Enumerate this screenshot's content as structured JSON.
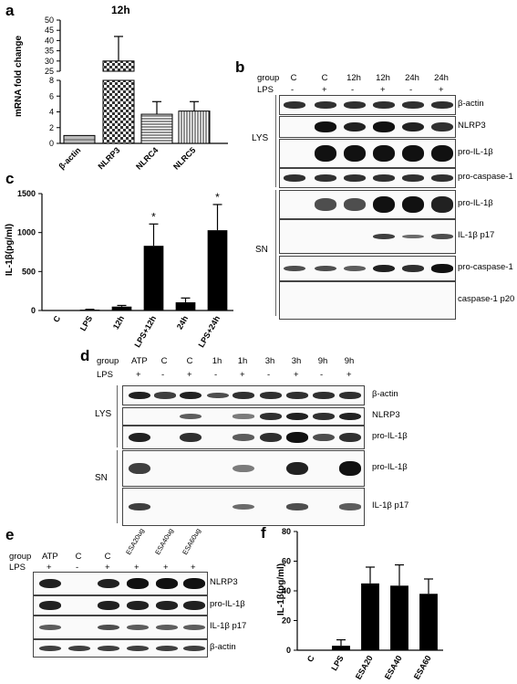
{
  "panels": {
    "a": {
      "letter": "a",
      "chart_data": {
        "type": "bar",
        "title": "12h",
        "ylabel": "mRNA fold change",
        "categories": [
          "β-actin",
          "NLRP3",
          "NLRC4",
          "NLRC5"
        ],
        "values": [
          1,
          30,
          3.7,
          4.1
        ],
        "errors": [
          0,
          12,
          1.6,
          1.2
        ],
        "y_ticks_lower": [
          "0",
          "2",
          "4",
          "6",
          "8"
        ],
        "y_ticks_upper": [
          "25",
          "30",
          "35",
          "40",
          "45",
          "50"
        ],
        "axis_break": [
          8,
          25
        ]
      }
    },
    "b": {
      "letter": "b",
      "group_label": "group",
      "lps_label": "LPS",
      "groups": [
        "C",
        "C",
        "12h",
        "12h",
        "24h",
        "24h"
      ],
      "lps": [
        "-",
        "+",
        "-",
        "+",
        "-",
        "+"
      ],
      "section_lys": "LYS",
      "section_sn": "SN",
      "lys_bands": [
        "β-actin",
        "NLRP3",
        "pro-IL-1β",
        "pro-caspase-1"
      ],
      "sn_bands": [
        "pro-IL-1β",
        "IL-1β p17",
        "pro-caspase-1",
        "caspase-1 p20"
      ]
    },
    "c": {
      "letter": "c",
      "chart_data": {
        "type": "bar",
        "ylabel": "IL-1β(pg/ml)",
        "categories": [
          "C",
          "LPS",
          "12h",
          "LPS+12h",
          "24h",
          "LPS+24h"
        ],
        "values": [
          0,
          10,
          50,
          830,
          105,
          1030
        ],
        "errors": [
          0,
          5,
          15,
          280,
          55,
          330
        ],
        "significance": [
          "",
          "",
          "",
          "*",
          "",
          "*"
        ],
        "ylim": [
          0,
          1500
        ],
        "y_ticks": [
          "0",
          "500",
          "1000",
          "1500"
        ]
      }
    },
    "d": {
      "letter": "d",
      "group_label": "group",
      "lps_label": "LPS",
      "groups": [
        "ATP",
        "C",
        "C",
        "1h",
        "1h",
        "3h",
        "3h",
        "9h",
        "9h"
      ],
      "lps": [
        "+",
        "-",
        "+",
        "-",
        "+",
        "-",
        "+",
        "-",
        "+"
      ],
      "section_lys": "LYS",
      "section_sn": "SN",
      "lys_bands": [
        "β-actin",
        "NLRP3",
        "pro-IL-1β"
      ],
      "sn_bands": [
        "pro-IL-1β",
        "IL-1β p17"
      ]
    },
    "e": {
      "letter": "e",
      "group_label": "group",
      "lps_label": "LPS",
      "groups": [
        "ATP",
        "C",
        "C",
        "ESA20ug",
        "ESA40ug",
        "ESA60ug"
      ],
      "lps": [
        "+",
        "-",
        "+",
        "+",
        "+",
        "+"
      ],
      "bands": [
        "NLRP3",
        "pro-IL-1β",
        "IL-1β p17",
        "β-actin"
      ]
    },
    "f": {
      "letter": "f",
      "chart_data": {
        "type": "bar",
        "ylabel": "IL-1β(pg/ml)",
        "categories": [
          "C",
          "LPS",
          "ESA20",
          "ESA40",
          "ESA60"
        ],
        "values": [
          0,
          3,
          45,
          43.5,
          38
        ],
        "errors": [
          0,
          4,
          11,
          14,
          10
        ],
        "ylim": [
          0,
          80
        ],
        "y_ticks": [
          "0",
          "20",
          "40",
          "60",
          "80"
        ]
      }
    }
  }
}
